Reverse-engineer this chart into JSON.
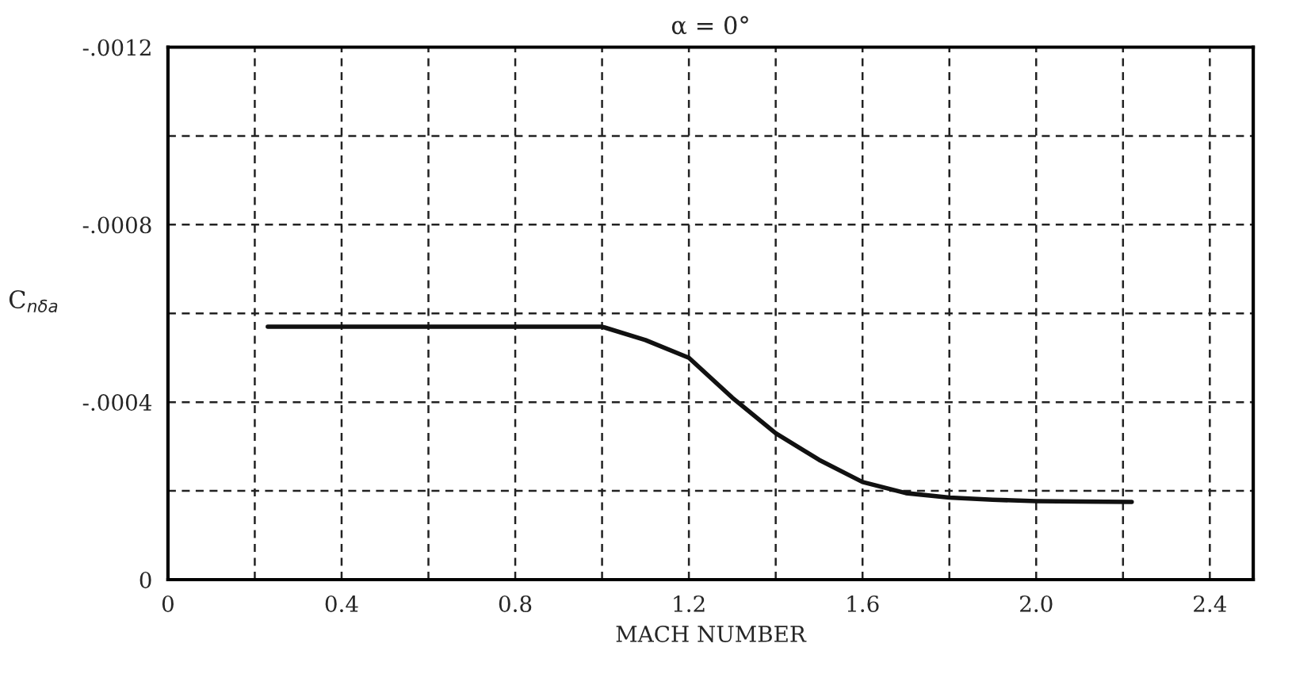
{
  "chart_data": {
    "type": "line",
    "title": "α = 0°",
    "xlabel": "MACH NUMBER",
    "ylabel": "C$_{nδa}$",
    "x": [
      0.23,
      0.4,
      0.6,
      0.8,
      1.0,
      1.1,
      1.2,
      1.3,
      1.4,
      1.5,
      1.6,
      1.7,
      1.8,
      1.9,
      2.0,
      2.1,
      2.22
    ],
    "series": [
      {
        "color": "#111111",
        "values": [
          -0.00057,
          -0.00057,
          -0.00057,
          -0.00057,
          -0.00057,
          -0.00054,
          -0.0005,
          -0.00041,
          -0.00033,
          -0.00027,
          -0.00022,
          -0.000195,
          -0.000185,
          -0.00018,
          -0.000177,
          -0.000176,
          -0.000175
        ]
      }
    ],
    "xlim": [
      0,
      2.5
    ],
    "ylim": [
      0,
      -0.0012
    ],
    "xticks": [
      0,
      {
        "value": 0.2,
        "label": null
      },
      {
        "value": 0.4,
        "label": "0.4"
      },
      {
        "value": 0.6,
        "label": null
      },
      {
        "value": 0.8,
        "label": "0.8"
      },
      {
        "value": 1.0,
        "label": null
      },
      {
        "value": 1.2,
        "label": "1.2"
      },
      {
        "value": 1.4,
        "label": null
      },
      {
        "value": 1.6,
        "label": "1.6"
      },
      {
        "value": 1.8,
        "label": null
      },
      {
        "value": 2.0,
        "label": "2.0"
      },
      {
        "value": 2.2,
        "label": null
      },
      {
        "value": 2.4,
        "label": "2.4"
      }
    ],
    "yticks": [
      0,
      {
        "value": -0.0002,
        "label": null
      },
      {
        "value": -0.0004,
        "label": "-.0004"
      },
      {
        "value": -0.0006,
        "label": null
      },
      {
        "value": -0.0008,
        "label": "-.0008"
      },
      {
        "value": -0.001,
        "label": null
      },
      {
        "value": -0.0012,
        "label": "-.0012"
      }
    ],
    "grid": true,
    "line_style": "solid",
    "marker": "none",
    "legend": false
  }
}
